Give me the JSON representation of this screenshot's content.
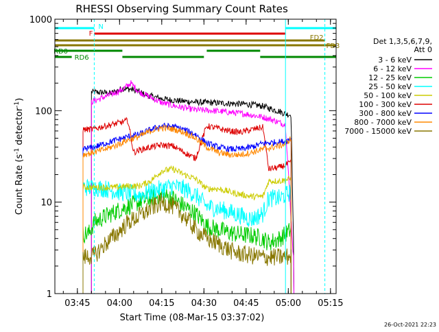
{
  "chart_data": {
    "type": "line",
    "title": "RHESSI Observing Summary Count Rates",
    "xlabel": "Start Time (08-Mar-15 03:37:02)",
    "ylabel_main": "Count Rate (s",
    "ylabel_sup1": "-1",
    "ylabel_mid": " detector",
    "ylabel_sup2": "-1",
    "ylabel_end": ")",
    "x_unit": "minutes since 03:37:02",
    "xlim": [
      0,
      100
    ],
    "ylim": [
      1,
      1000
    ],
    "yscale": "log",
    "x_ticks": [
      {
        "x": 8,
        "label": "03:45"
      },
      {
        "x": 23,
        "label": "04:00"
      },
      {
        "x": 38,
        "label": "04:15"
      },
      {
        "x": 53,
        "label": "04:30"
      },
      {
        "x": 68,
        "label": "04:45"
      },
      {
        "x": 83,
        "label": "05:00"
      },
      {
        "x": 98,
        "label": "05:15"
      }
    ],
    "y_ticks": [
      {
        "y": 1,
        "label": "1"
      },
      {
        "y": 10,
        "label": "10"
      },
      {
        "y": 100,
        "label": "100"
      },
      {
        "y": 1000,
        "label": "1000"
      }
    ],
    "legend": {
      "header": [
        "Det 1,3,5,6,7,9,",
        "Att 0"
      ],
      "placement": "right"
    },
    "series": [
      {
        "name": "3 - 6 keV",
        "color": "#000000",
        "x": [
          13,
          17,
          20,
          24,
          28,
          32,
          38,
          44,
          50,
          56,
          62,
          68,
          74,
          78,
          80,
          82,
          84,
          85
        ],
        "y": [
          160,
          158,
          155,
          175,
          170,
          150,
          135,
          128,
          124,
          122,
          120,
          118,
          112,
          102,
          98,
          92,
          90,
          2
        ]
      },
      {
        "name": "6 - 12 keV",
        "color": "#ff00ff",
        "x": [
          13,
          16,
          20,
          24,
          27,
          28,
          30,
          34,
          38,
          44,
          50,
          56,
          62,
          68,
          74,
          78,
          82,
          85
        ],
        "y": [
          125,
          135,
          150,
          170,
          200,
          185,
          160,
          140,
          122,
          110,
          102,
          100,
          96,
          92,
          85,
          78,
          70,
          2
        ]
      },
      {
        "name": "12 - 25 keV",
        "color": "#00cc00",
        "x": [
          10,
          12,
          14,
          18,
          22,
          26,
          30,
          34,
          38,
          42,
          46,
          50,
          54,
          58,
          64,
          70,
          74,
          76,
          80,
          84
        ],
        "y": [
          4.5,
          4.5,
          6,
          7,
          8,
          9,
          10,
          11,
          12,
          11,
          9,
          7.5,
          5.5,
          5,
          4.5,
          4.3,
          4,
          3.6,
          4,
          5
        ]
      },
      {
        "name": "25 - 50 keV",
        "color": "#00ffff",
        "x": [
          10,
          14,
          18,
          22,
          26,
          30,
          34,
          38,
          42,
          46,
          50,
          54,
          58,
          64,
          70,
          74,
          76,
          80,
          84
        ],
        "y": [
          14.5,
          14.5,
          14,
          13,
          12.5,
          12,
          13,
          14,
          15,
          14,
          12,
          9,
          8.5,
          7.5,
          6.5,
          7.5,
          11,
          11,
          13
        ]
      },
      {
        "name": "50 - 100 keV",
        "color": "#cccc00",
        "x": [
          10,
          14,
          18,
          22,
          26,
          30,
          34,
          38,
          42,
          46,
          50,
          54,
          58,
          64,
          70,
          74,
          76,
          80,
          84
        ],
        "y": [
          14.5,
          14.5,
          14.5,
          14.5,
          15,
          15,
          17,
          22,
          23,
          20,
          18,
          14,
          14,
          12.5,
          11.5,
          11.5,
          17,
          17,
          18
        ]
      },
      {
        "name": "100 - 300 keV",
        "color": "#dd0000",
        "x": [
          10,
          14,
          16,
          20,
          24,
          26,
          28,
          30,
          34,
          38,
          42,
          46,
          50,
          54,
          58,
          62,
          66,
          70,
          74,
          76,
          80,
          84
        ],
        "y": [
          62,
          63,
          66,
          70,
          75,
          78,
          35,
          37,
          40,
          42,
          41,
          35,
          30,
          68,
          64,
          60,
          58,
          62,
          66,
          23,
          24,
          27
        ]
      },
      {
        "name": "300 - 800 keV",
        "color": "#0000ff",
        "x": [
          10,
          14,
          18,
          22,
          26,
          30,
          34,
          38,
          42,
          46,
          50,
          54,
          58,
          62,
          66,
          70,
          74,
          78,
          82,
          84
        ],
        "y": [
          38,
          40,
          44,
          48,
          52,
          55,
          62,
          68,
          67,
          62,
          55,
          44,
          40,
          38,
          38,
          40,
          44,
          45,
          46,
          50
        ]
      },
      {
        "name": "800 - 7000 keV",
        "color": "#ff8800",
        "x": [
          10,
          14,
          18,
          22,
          26,
          30,
          34,
          38,
          42,
          46,
          50,
          54,
          58,
          62,
          66,
          70,
          74,
          78,
          82,
          84
        ],
        "y": [
          33,
          35,
          38,
          42,
          48,
          52,
          60,
          65,
          63,
          58,
          50,
          40,
          35,
          33,
          33,
          35,
          38,
          40,
          43,
          50
        ]
      },
      {
        "name": "7000 - 15000 keV",
        "color": "#887700",
        "x": [
          10,
          14,
          18,
          22,
          26,
          30,
          34,
          38,
          42,
          46,
          50,
          54,
          58,
          64,
          70,
          74,
          78,
          82,
          84
        ],
        "y": [
          2.5,
          2.6,
          3.5,
          4.5,
          6,
          7,
          8.5,
          10,
          9,
          7,
          5,
          4,
          3.5,
          2.8,
          2.6,
          2.5,
          2.5,
          2.5,
          2.6
        ]
      }
    ],
    "data_gaps_after_minute": 85,
    "flag_bars": [
      {
        "label": "N",
        "color": "#00ffff",
        "segments": [
          [
            0,
            14
          ],
          [
            82,
            100
          ]
        ],
        "level": 1
      },
      {
        "label": "F",
        "color": "#dd0000",
        "segments": [
          [
            14,
            82
          ]
        ],
        "level": 2
      },
      {
        "label": "FD2",
        "color": "#887700",
        "segments": [
          [
            0,
            96
          ]
        ],
        "level": 3
      },
      {
        "label": "FD3",
        "color": "#887700",
        "segments": [
          [
            0,
            100
          ]
        ],
        "level": 4
      },
      {
        "label": "RD0",
        "color": "#008800",
        "segments": [
          [
            0,
            24
          ],
          [
            54,
            73
          ]
        ],
        "level": 5
      },
      {
        "label": "RD6",
        "color": "#008800",
        "segments": [
          [
            0,
            6
          ],
          [
            24,
            53
          ],
          [
            73,
            100
          ]
        ],
        "level": 6
      }
    ],
    "vertical_lines": [
      {
        "x": 14,
        "color": "#00ffff",
        "style": "dashed"
      },
      {
        "x": 82,
        "color": "#00ffff",
        "style": "solid"
      },
      {
        "x": 96,
        "color": "#00ffff",
        "style": "dashed"
      }
    ],
    "timestamp": "26-Oct-2021 22:23"
  }
}
